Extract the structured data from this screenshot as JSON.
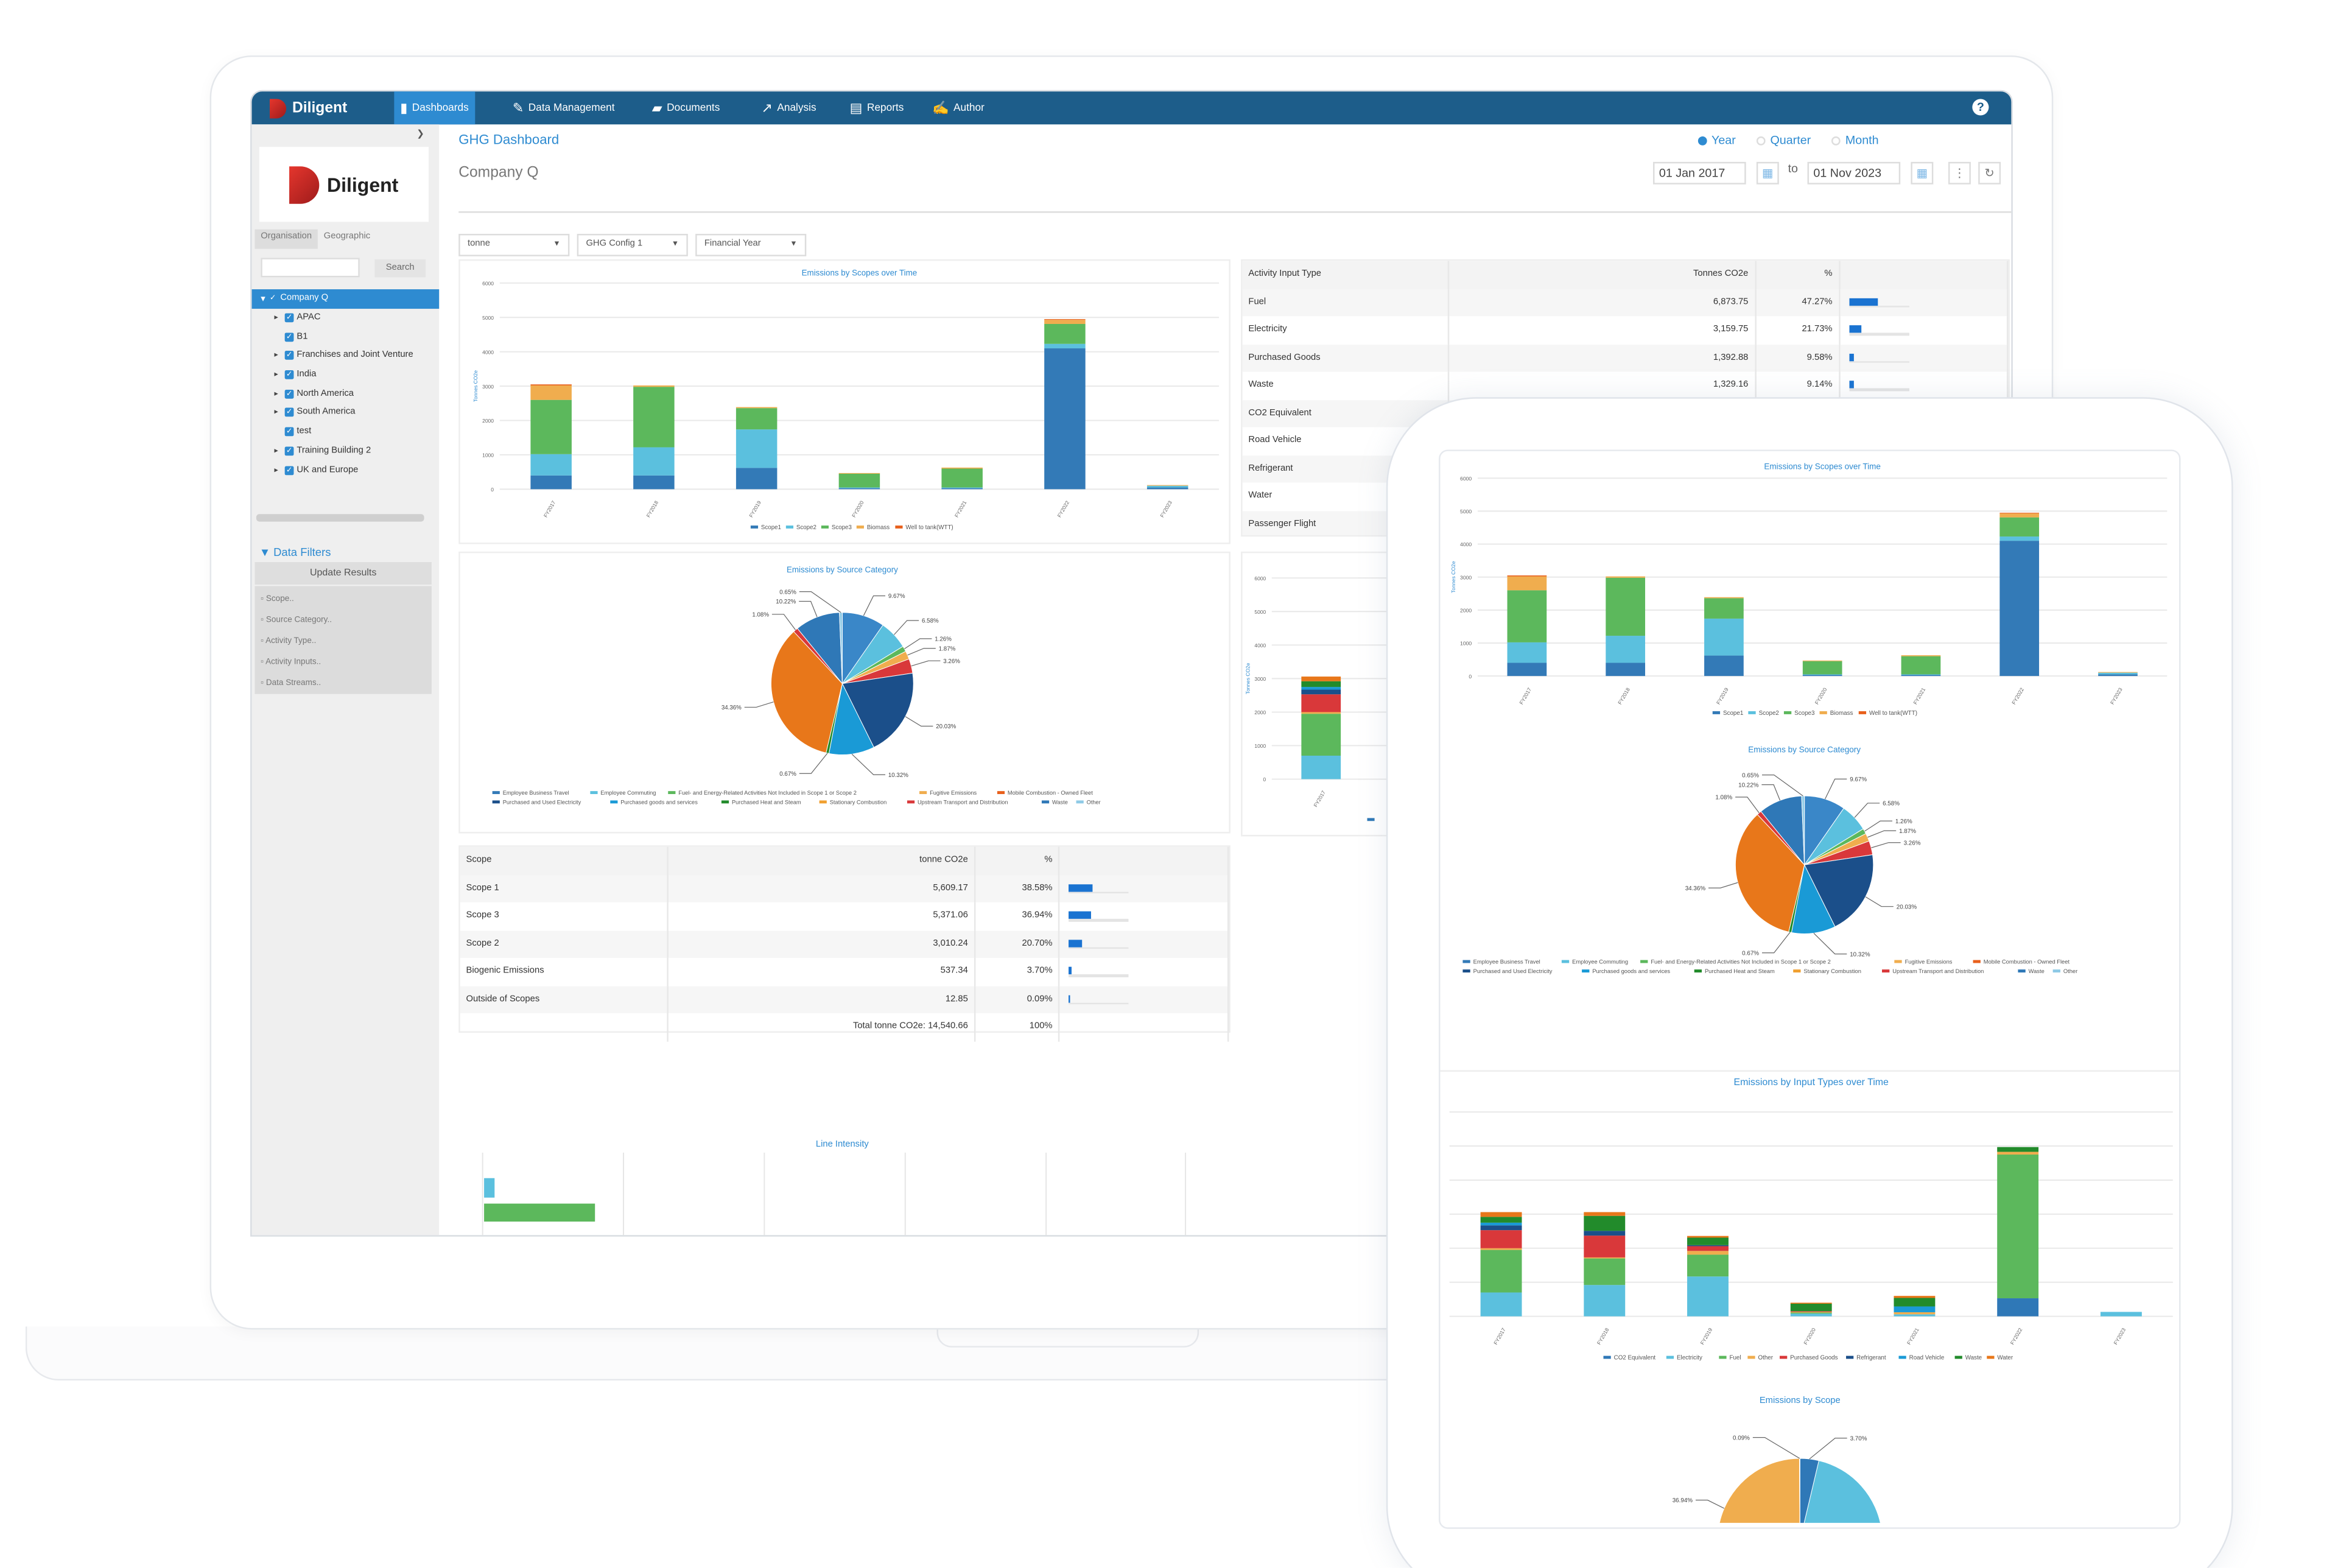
{
  "nav": {
    "brand": "Diligent",
    "tabs": [
      {
        "label": "Dashboards",
        "icon": "bar-chart-icon",
        "active": true
      },
      {
        "label": "Data Management",
        "icon": "edit-icon"
      },
      {
        "label": "Documents",
        "icon": "folder-icon"
      },
      {
        "label": "Analysis",
        "icon": "line-chart-icon"
      },
      {
        "label": "Reports",
        "icon": "report-icon"
      },
      {
        "label": "Author",
        "icon": "pen-icon"
      }
    ],
    "help": "?"
  },
  "sidebar": {
    "logo": "Diligent",
    "tabs": [
      "Organisation",
      "Geographic"
    ],
    "search_button": "Search",
    "search_value": "",
    "tree": [
      {
        "label": "Company Q",
        "root": true
      },
      {
        "label": "APAC",
        "expandable": true
      },
      {
        "label": "B1",
        "expandable": false
      },
      {
        "label": "Franchises and Joint Venture",
        "expandable": true
      },
      {
        "label": "India",
        "expandable": true
      },
      {
        "label": "North America",
        "expandable": true
      },
      {
        "label": "South America",
        "expandable": true
      },
      {
        "label": "test",
        "expandable": false
      },
      {
        "label": "Training Building 2",
        "expandable": true
      },
      {
        "label": "UK and Europe",
        "expandable": true
      }
    ],
    "filters_title": "Data Filters",
    "update_button": "Update Results",
    "filters": [
      "Scope..",
      "Source Category..",
      "Activity Type..",
      "Activity Inputs..",
      "Data Streams.."
    ]
  },
  "header": {
    "title": "GHG Dashboard",
    "company": "Company Q",
    "periods": [
      {
        "label": "Year",
        "selected": true
      },
      {
        "label": "Quarter",
        "selected": false
      },
      {
        "label": "Month",
        "selected": false
      }
    ],
    "date_from": "01 Jan 2017",
    "to_label": "to",
    "date_to": "01 Nov 2023",
    "selects": [
      "tonne",
      "GHG Config 1",
      "Financial Year"
    ]
  },
  "colors": {
    "accent": "#2e8bd1",
    "nav": "#1d5d8a",
    "bar": "#1a73d1"
  },
  "activity_table": {
    "headers": [
      "Activity Input Type",
      "Tonnes CO2e",
      "%"
    ],
    "rows": [
      {
        "name": "Fuel",
        "value": "6,873.75",
        "pct": "47.27%",
        "frac": 0.4727
      },
      {
        "name": "Electricity",
        "value": "3,159.75",
        "pct": "21.73%",
        "frac": 0.2173
      },
      {
        "name": "Purchased Goods",
        "value": "1,392.88",
        "pct": "9.58%",
        "frac": 0.0958
      },
      {
        "name": "Waste",
        "value": "1,329.16",
        "pct": "9.14%",
        "frac": 0.0914
      },
      {
        "name": "CO2 Equivalent"
      },
      {
        "name": "Road Vehicle"
      },
      {
        "name": "Refrigerant"
      },
      {
        "name": "Water"
      },
      {
        "name": "Passenger Flight"
      }
    ]
  },
  "scope_table": {
    "headers": [
      "Scope",
      "tonne CO2e",
      "%"
    ],
    "rows": [
      {
        "name": "Scope 1",
        "value": "5,609.17",
        "pct": "38.58%",
        "frac": 0.3858
      },
      {
        "name": "Scope 3",
        "value": "5,371.06",
        "pct": "36.94%",
        "frac": 0.3694
      },
      {
        "name": "Scope 2",
        "value": "3,010.24",
        "pct": "20.70%",
        "frac": 0.207
      },
      {
        "name": "Biogenic Emissions",
        "value": "537.34",
        "pct": "3.70%",
        "frac": 0.037
      },
      {
        "name": "Outside of Scopes",
        "value": "12.85",
        "pct": "0.09%",
        "frac": 0.0009
      }
    ],
    "total": "Total tonne CO2e: 14,540.66",
    "total_pct": "100%"
  },
  "line_intensity": {
    "title": "Line Intensity"
  },
  "chart_data": [
    {
      "id": "scopes",
      "type": "bar",
      "stacked": true,
      "title": "Emissions by Scopes over Time",
      "ylabel": "Tonnes CO2e",
      "ylim": [
        0,
        6000
      ],
      "yticks": [
        0,
        1000,
        2000,
        3000,
        4000,
        5000,
        6000
      ],
      "grid": true,
      "legend": "bottom",
      "categories": [
        "FY2017",
        "FY2018",
        "FY2019",
        "FY2020",
        "FY2021",
        "FY2022",
        "FY2023"
      ],
      "series": [
        {
          "name": "Scope1",
          "color": "#337ab7",
          "values": [
            400,
            400,
            620,
            30,
            30,
            4100,
            50
          ]
        },
        {
          "name": "Scope2",
          "color": "#5bc0de",
          "values": [
            620,
            820,
            1120,
            20,
            20,
            130,
            50
          ]
        },
        {
          "name": "Scope3",
          "color": "#5cb85c",
          "values": [
            1580,
            1760,
            620,
            400,
            550,
            580,
            0
          ]
        },
        {
          "name": "Biomass",
          "color": "#f0ad4e",
          "values": [
            420,
            40,
            30,
            20,
            30,
            120,
            20
          ]
        },
        {
          "name": "Well to tank(WTT)",
          "color": "#e8601c",
          "values": [
            30,
            0,
            0,
            0,
            0,
            20,
            0
          ]
        }
      ]
    },
    {
      "id": "source",
      "type": "pie",
      "title": "Emissions by Source Category",
      "slices": [
        {
          "value": 9.67,
          "label": "9.67%",
          "color": "#3a87c8"
        },
        {
          "value": 6.58,
          "label": "6.58%",
          "color": "#5bc0de"
        },
        {
          "value": 1.26,
          "label": "1.26%",
          "color": "#5cb85c"
        },
        {
          "value": 1.87,
          "label": "1.87%",
          "color": "#f0ad4e"
        },
        {
          "value": 3.26,
          "label": "3.26%",
          "color": "#d9383a"
        },
        {
          "value": 20.03,
          "label": "20.03%",
          "color": "#1b4f8a"
        },
        {
          "value": 10.32,
          "label": "10.32%",
          "color": "#1a9ad6"
        },
        {
          "value": 0.67,
          "label": "0.67%",
          "color": "#228b2b"
        },
        {
          "value": 34.36,
          "label": "34.36%",
          "color": "#e8771a"
        },
        {
          "value": 1.08,
          "label": "1.08%",
          "color": "#d9383a"
        },
        {
          "value": 10.22,
          "label": "10.22%",
          "color": "#2f78b7"
        },
        {
          "value": 0.65,
          "label": "0.65%",
          "color": "#8ecae6"
        }
      ],
      "legend": [
        {
          "name": "Employee Business Travel",
          "color": "#337ab7"
        },
        {
          "name": "Employee Commuting",
          "color": "#5bc0de"
        },
        {
          "name": "Fuel- and Energy-Related Activities Not Included in Scope 1 or Scope 2",
          "color": "#5cb85c"
        },
        {
          "name": "Fugitive Emissions",
          "color": "#f0ad4e"
        },
        {
          "name": "Mobile Combustion - Owned Fleet",
          "color": "#e8601c"
        },
        {
          "name": "Purchased and Used Electricity",
          "color": "#1b4f8a"
        },
        {
          "name": "Purchased goods and services",
          "color": "#1a9ad6"
        },
        {
          "name": "Purchased Heat and Steam",
          "color": "#228b2b"
        },
        {
          "name": "Stationary Combustion",
          "color": "#f0a030"
        },
        {
          "name": "Upstream Transport and Distribution",
          "color": "#d9383a"
        },
        {
          "name": "Waste",
          "color": "#2f78b7"
        },
        {
          "name": "Other",
          "color": "#8ecae6"
        }
      ]
    },
    {
      "id": "inputs",
      "type": "bar",
      "stacked": true,
      "title": "Emissions by Input Types over Time",
      "ylabel": "Tonnes CO2e",
      "ylim": [
        0,
        6000
      ],
      "yticks": [
        0,
        1000,
        2000,
        3000,
        4000,
        5000,
        6000
      ],
      "grid": true,
      "legend": "bottom",
      "categories": [
        "FY2017",
        "FY2018",
        "FY2019",
        "FY2020",
        "FY2021",
        "FY2022",
        "FY2023"
      ],
      "series": [
        {
          "name": "CO2 Equivalent",
          "color": "#2f78b7",
          "values": [
            0,
            0,
            0,
            0,
            0,
            530,
            0
          ]
        },
        {
          "name": "Electricity",
          "color": "#5bc0de",
          "values": [
            700,
            920,
            1170,
            80,
            60,
            0,
            130
          ]
        },
        {
          "name": "Fuel",
          "color": "#5cb85c",
          "values": [
            1250,
            780,
            640,
            30,
            0,
            4220,
            0
          ]
        },
        {
          "name": "Other",
          "color": "#f0ad4e",
          "values": [
            50,
            30,
            110,
            20,
            60,
            80,
            0
          ]
        },
        {
          "name": "Purchased Goods",
          "color": "#d9383a",
          "values": [
            530,
            640,
            140,
            20,
            0,
            0,
            0
          ]
        },
        {
          "name": "Refrigerant",
          "color": "#1b4f8a",
          "values": [
            140,
            140,
            30,
            0,
            0,
            0,
            0
          ]
        },
        {
          "name": "Road Vehicle",
          "color": "#1a9ad6",
          "values": [
            80,
            0,
            0,
            0,
            170,
            0,
            0
          ]
        },
        {
          "name": "Waste",
          "color": "#228b2b",
          "values": [
            170,
            440,
            220,
            220,
            250,
            140,
            0
          ]
        },
        {
          "name": "Water",
          "color": "#e8771a",
          "values": [
            140,
            110,
            50,
            30,
            60,
            0,
            0
          ]
        }
      ]
    },
    {
      "id": "scope_pie",
      "type": "pie",
      "title": "Emissions by Scope",
      "slices": [
        {
          "value": 3.7,
          "label": "3.70%",
          "color": "#2f78b7"
        },
        {
          "value": 38.58,
          "label": "",
          "color": "#5bc0de"
        },
        {
          "value": 20.7,
          "label": "",
          "color": "#1a9ad6"
        },
        {
          "value": 36.94,
          "label": "36.94%",
          "color": "#f0ad4e"
        },
        {
          "value": 0.09,
          "label": "0.09%",
          "color": "#d9383a"
        }
      ]
    }
  ]
}
